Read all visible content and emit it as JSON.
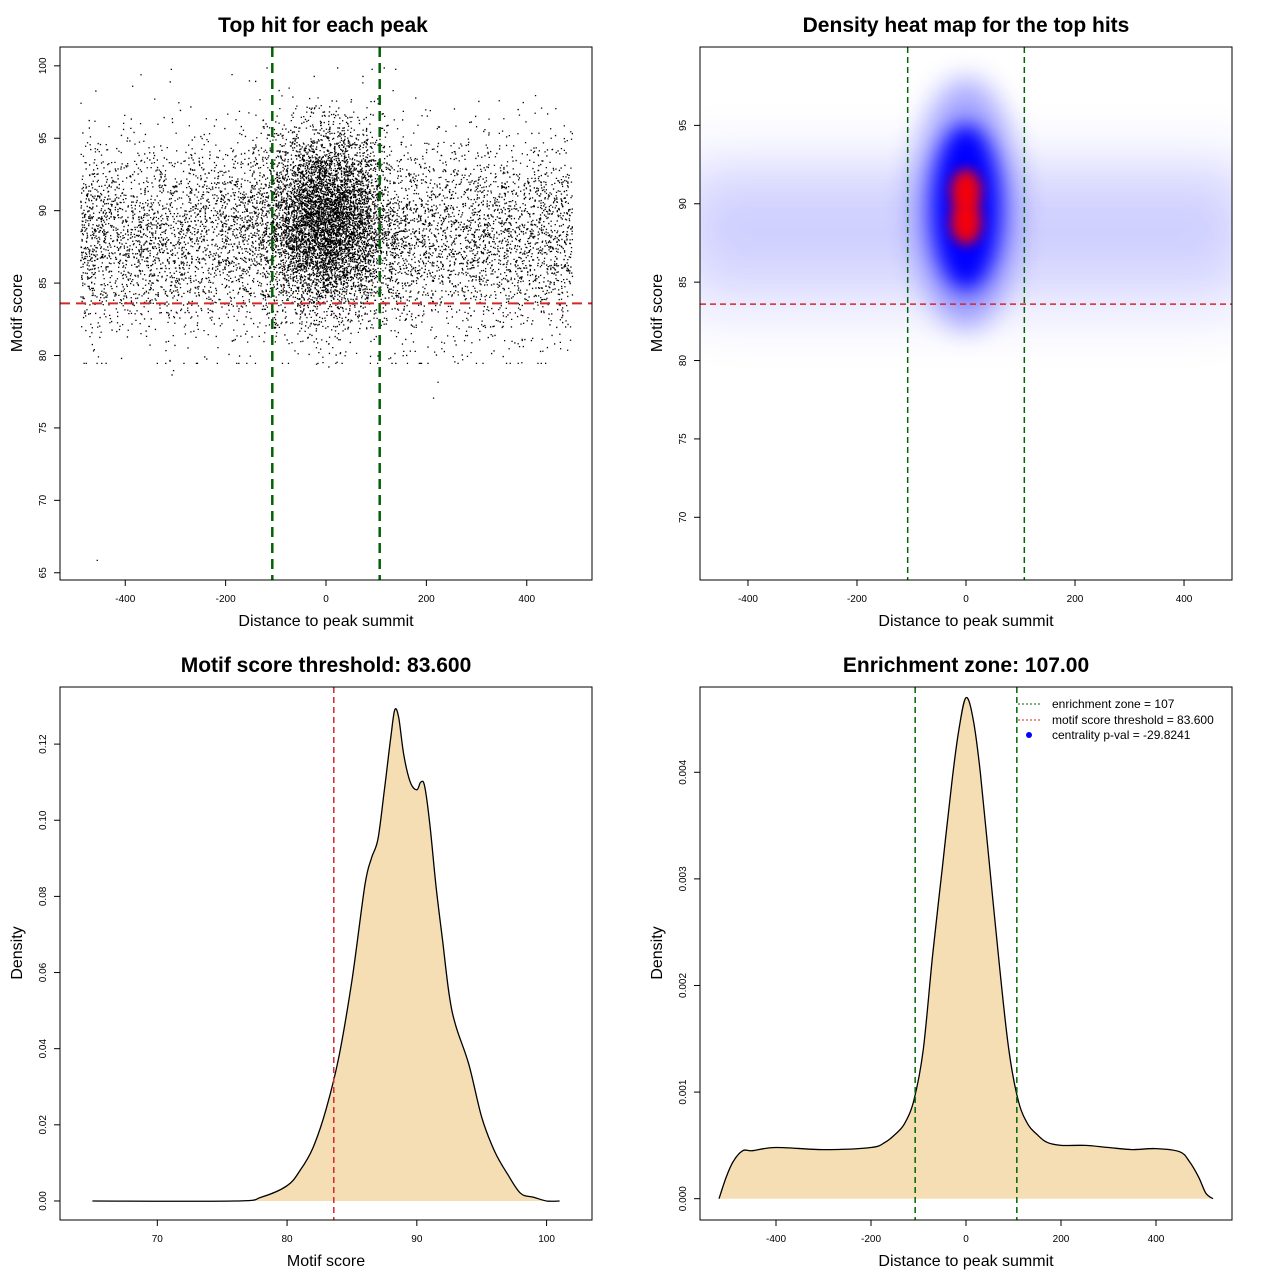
{
  "chart_data": [
    {
      "type": "scatter",
      "title": "Top hit for each peak",
      "xlabel": "Distance to peak summit",
      "ylabel": "Motif score",
      "xlim": [
        -530,
        530
      ],
      "ylim": [
        64.5,
        101.3
      ],
      "xticks": [
        "-400",
        "-200",
        "0",
        "200",
        "400"
      ],
      "yticks": [
        "65",
        "70",
        "75",
        "80",
        "85",
        "90",
        "95",
        "100"
      ],
      "vlines": [
        -107,
        107
      ],
      "hline": 83.6,
      "points": {
        "background": {
          "x_range": [
            -490,
            490
          ],
          "score_mean": 88.2,
          "score_sd": 3.4
        },
        "central": {
          "x_mean": 0,
          "x_sd": 60,
          "score_mean": 89.4,
          "score_sd": 3.0
        },
        "outliers": [
          [
            -457,
            65.9
          ],
          [
            213,
            77.1
          ],
          [
            222,
            78.2
          ],
          [
            -305,
            79.0
          ],
          [
            -308,
            78.7
          ]
        ]
      },
      "colors": {
        "points": "#000000",
        "vline": "#006400",
        "hline": "#d62728"
      }
    },
    {
      "type": "heatmap",
      "title": "Density heat map for the top hits",
      "xlabel": "Distance to peak summit",
      "ylabel": "Motif score",
      "xlim": [
        -488,
        488
      ],
      "ylim": [
        66,
        100
      ],
      "xticks": [
        "-400",
        "-200",
        "0",
        "200",
        "400"
      ],
      "yticks": [
        "70",
        "75",
        "80",
        "85",
        "90",
        "95"
      ],
      "vlines": [
        -107,
        107
      ],
      "hline": 83.6,
      "peaks": [
        {
          "x": 0,
          "y": 90.8
        },
        {
          "x": 0,
          "y": 88.8
        }
      ],
      "colors": {
        "low": "#ffffff",
        "mid": "#0000ff",
        "high": "#ff0000",
        "vline": "#006400",
        "hline": "#d62728"
      }
    },
    {
      "type": "area",
      "title": "Motif score threshold: 83.600",
      "xlabel": "Motif score",
      "ylabel": "Density",
      "xlim": [
        62.5,
        103.5
      ],
      "ylim": [
        -0.005,
        0.135
      ],
      "xticks": [
        "70",
        "80",
        "90",
        "100"
      ],
      "yticks": [
        "0.00",
        "0.02",
        "0.04",
        "0.06",
        "0.08",
        "0.10",
        "0.12"
      ],
      "vline": 83.6,
      "x": [
        65,
        76,
        78,
        80,
        81,
        82,
        83,
        84,
        85,
        86,
        86.5,
        87,
        87.5,
        88,
        88.3,
        88.6,
        89,
        89.5,
        90,
        90.3,
        90.6,
        91,
        91.5,
        92,
        92.5,
        93,
        94,
        95,
        96,
        97,
        98,
        99,
        100,
        101
      ],
      "values": [
        0.0,
        0.0,
        0.001,
        0.004,
        0.008,
        0.014,
        0.024,
        0.038,
        0.058,
        0.083,
        0.09,
        0.095,
        0.108,
        0.122,
        0.129,
        0.127,
        0.117,
        0.11,
        0.108,
        0.11,
        0.109,
        0.099,
        0.082,
        0.068,
        0.054,
        0.046,
        0.036,
        0.022,
        0.013,
        0.007,
        0.002,
        0.001,
        0.0,
        0.0
      ],
      "colors": {
        "fill": "#f5deb3",
        "line": "#000000",
        "vline": "#d62728"
      }
    },
    {
      "type": "area",
      "title": "Enrichment zone: 107.00",
      "xlabel": "Distance to peak summit",
      "ylabel": "Density",
      "xlim": [
        -560,
        560
      ],
      "ylim": [
        -0.0002,
        0.0048
      ],
      "xticks": [
        "-400",
        "-200",
        "0",
        "200",
        "400"
      ],
      "yticks": [
        "0.000",
        "0.001",
        "0.002",
        "0.003",
        "0.004"
      ],
      "vlines": [
        -107,
        107
      ],
      "x": [
        -520,
        -505,
        -490,
        -470,
        -450,
        -400,
        -300,
        -200,
        -170,
        -150,
        -130,
        -110,
        -90,
        -70,
        -50,
        -30,
        -15,
        0,
        15,
        30,
        50,
        70,
        90,
        110,
        130,
        150,
        170,
        200,
        250,
        300,
        350,
        400,
        450,
        470,
        490,
        505,
        520
      ],
      "values": [
        0.0,
        0.0002,
        0.00035,
        0.00045,
        0.00045,
        0.00048,
        0.00046,
        0.00048,
        0.00053,
        0.0006,
        0.0007,
        0.00092,
        0.0014,
        0.0023,
        0.0031,
        0.0039,
        0.0044,
        0.0047,
        0.0045,
        0.004,
        0.0031,
        0.0022,
        0.0014,
        0.00092,
        0.0007,
        0.0006,
        0.00053,
        0.0005,
        0.0005,
        0.00048,
        0.00046,
        0.00047,
        0.00044,
        0.00035,
        0.0002,
        5e-05,
        0.0
      ],
      "legend": {
        "position": "top-right",
        "entries": [
          "enrichment zone = 107",
          "motif score threshold = 83.600",
          "centrality p-val = -29.8241"
        ]
      },
      "colors": {
        "fill": "#f5deb3",
        "line": "#000000",
        "vline": "#006400",
        "legend_red": "#d62728",
        "legend_dot": "#0000ff"
      }
    }
  ]
}
